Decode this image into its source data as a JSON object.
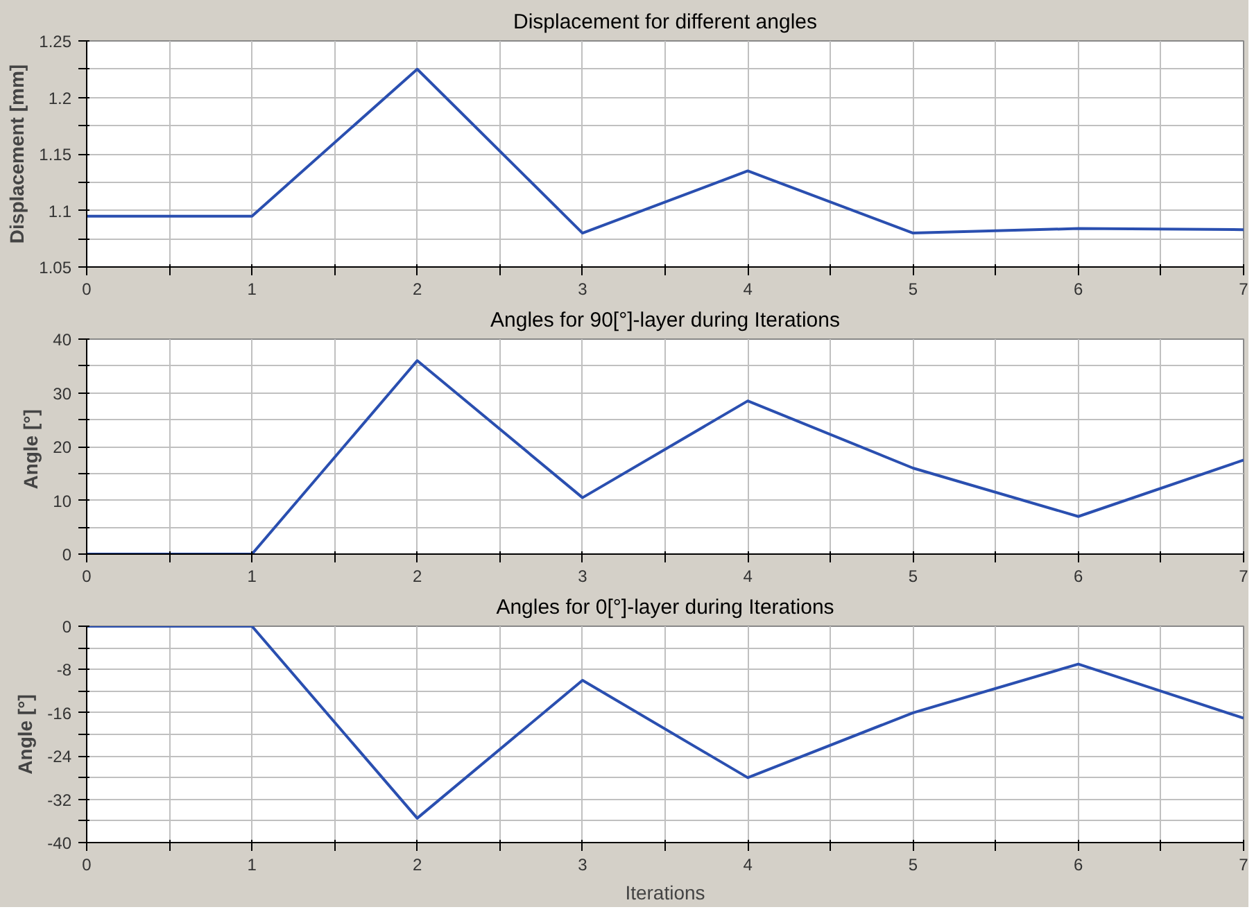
{
  "chart_data": [
    {
      "type": "line",
      "title": "Displacement for different angles",
      "ylabel": "Displacement [mm]",
      "x": [
        0,
        1,
        2,
        3,
        4,
        5,
        6,
        7
      ],
      "series": [
        {
          "color": "#2a4fb0",
          "values": [
            1.095,
            1.095,
            1.225,
            1.08,
            1.135,
            1.08,
            1.084,
            1.083
          ]
        }
      ],
      "xlim": [
        0,
        7
      ],
      "xticks": [
        0,
        {
          "value": 0.5,
          "label": null
        },
        1,
        {
          "value": 1.5,
          "label": null
        },
        2,
        {
          "value": 2.5,
          "label": null
        },
        3,
        {
          "value": 3.5,
          "label": null
        },
        4,
        {
          "value": 4.5,
          "label": null
        },
        5,
        {
          "value": 5.5,
          "label": null
        },
        6,
        {
          "value": 6.5,
          "label": null
        },
        7
      ],
      "ylim": [
        1.05,
        1.25
      ],
      "yticks": [
        {
          "value": 1.05,
          "label": "1.05"
        },
        {
          "value": 1.075,
          "label": null
        },
        {
          "value": 1.1,
          "label": "1.1"
        },
        {
          "value": 1.125,
          "label": null
        },
        {
          "value": 1.15,
          "label": "1.15"
        },
        {
          "value": 1.175,
          "label": null
        },
        {
          "value": 1.2,
          "label": "1.2"
        },
        {
          "value": 1.225,
          "label": null
        },
        {
          "value": 1.25,
          "label": "1.25"
        }
      ],
      "grid": true
    },
    {
      "type": "line",
      "title": "Angles for 90[°]-layer during Iterations",
      "ylabel": "Angle  [°]",
      "x": [
        0,
        1,
        2,
        3,
        4,
        5,
        6,
        7
      ],
      "series": [
        {
          "color": "#2a4fb0",
          "values": [
            0,
            0,
            36,
            10.5,
            28.5,
            16,
            7,
            17.5
          ]
        }
      ],
      "xlim": [
        0,
        7
      ],
      "xticks": [
        0,
        {
          "value": 0.5,
          "label": null
        },
        1,
        {
          "value": 1.5,
          "label": null
        },
        2,
        {
          "value": 2.5,
          "label": null
        },
        3,
        {
          "value": 3.5,
          "label": null
        },
        4,
        {
          "value": 4.5,
          "label": null
        },
        5,
        {
          "value": 5.5,
          "label": null
        },
        6,
        {
          "value": 6.5,
          "label": null
        },
        7
      ],
      "ylim": [
        0,
        40
      ],
      "yticks": [
        0,
        {
          "value": 5,
          "label": null
        },
        10,
        {
          "value": 15,
          "label": null
        },
        20,
        {
          "value": 25,
          "label": null
        },
        30,
        {
          "value": 35,
          "label": null
        },
        40
      ],
      "grid": true
    },
    {
      "type": "line",
      "title": "Angles for 0[°]-layer during Iterations",
      "ylabel": "Angle [°]",
      "xlabel": "Iterations",
      "x": [
        0,
        1,
        2,
        3,
        4,
        5,
        6,
        7
      ],
      "series": [
        {
          "color": "#2a4fb0",
          "values": [
            0,
            0,
            -35.5,
            -10,
            -28,
            -16,
            -7,
            -17
          ]
        }
      ],
      "xlim": [
        0,
        7
      ],
      "xticks": [
        0,
        {
          "value": 0.5,
          "label": null
        },
        1,
        {
          "value": 1.5,
          "label": null
        },
        2,
        {
          "value": 2.5,
          "label": null
        },
        3,
        {
          "value": 3.5,
          "label": null
        },
        4,
        {
          "value": 4.5,
          "label": null
        },
        5,
        {
          "value": 5.5,
          "label": null
        },
        6,
        {
          "value": 6.5,
          "label": null
        },
        7
      ],
      "ylim": [
        -40,
        0
      ],
      "yticks": [
        -40,
        {
          "value": -36,
          "label": null
        },
        -32,
        {
          "value": -28,
          "label": null
        },
        -24,
        {
          "value": -20,
          "label": null
        },
        -16,
        {
          "value": -12,
          "label": null
        },
        -8,
        {
          "value": -4,
          "label": null
        },
        0
      ],
      "grid": true
    }
  ]
}
